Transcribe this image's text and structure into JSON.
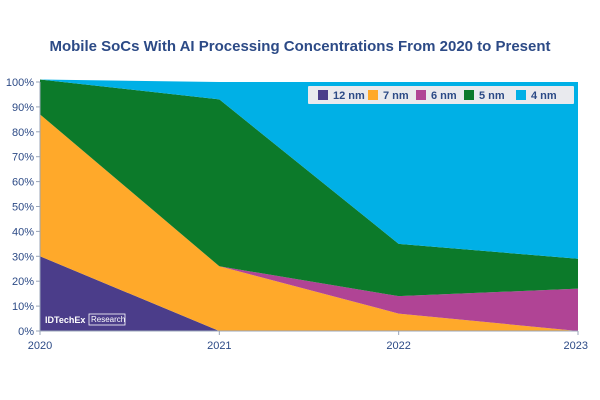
{
  "chart_data": {
    "type": "area",
    "stacked": true,
    "percent": true,
    "title": "Mobile SoCs With AI Processing Concentrations From 2020 to Present",
    "x": [
      "2020",
      "2021",
      "2022",
      "2023"
    ],
    "series": [
      {
        "name": "12 nm",
        "color": "#4b3d8a",
        "values": [
          30,
          0,
          0,
          0
        ]
      },
      {
        "name": "7 nm",
        "color": "#ffa92a",
        "values": [
          57,
          26,
          7,
          0
        ]
      },
      {
        "name": "6 nm",
        "color": "#b04495",
        "values": [
          0,
          0,
          7,
          17
        ]
      },
      {
        "name": "5 nm",
        "color": "#0c7a2a",
        "values": [
          14,
          67,
          21,
          12
        ]
      },
      {
        "name": "4 nm",
        "color": "#00b0e6",
        "values": [
          0,
          7,
          65,
          71
        ]
      }
    ],
    "y_ticks": [
      "0%",
      "10%",
      "20%",
      "30%",
      "40%",
      "50%",
      "60%",
      "70%",
      "80%",
      "90%",
      "100%"
    ],
    "ylim": [
      0,
      100
    ],
    "legend": "top-right",
    "grid": false
  },
  "watermark": {
    "brand": "IDTechEx",
    "sub": "Research"
  }
}
